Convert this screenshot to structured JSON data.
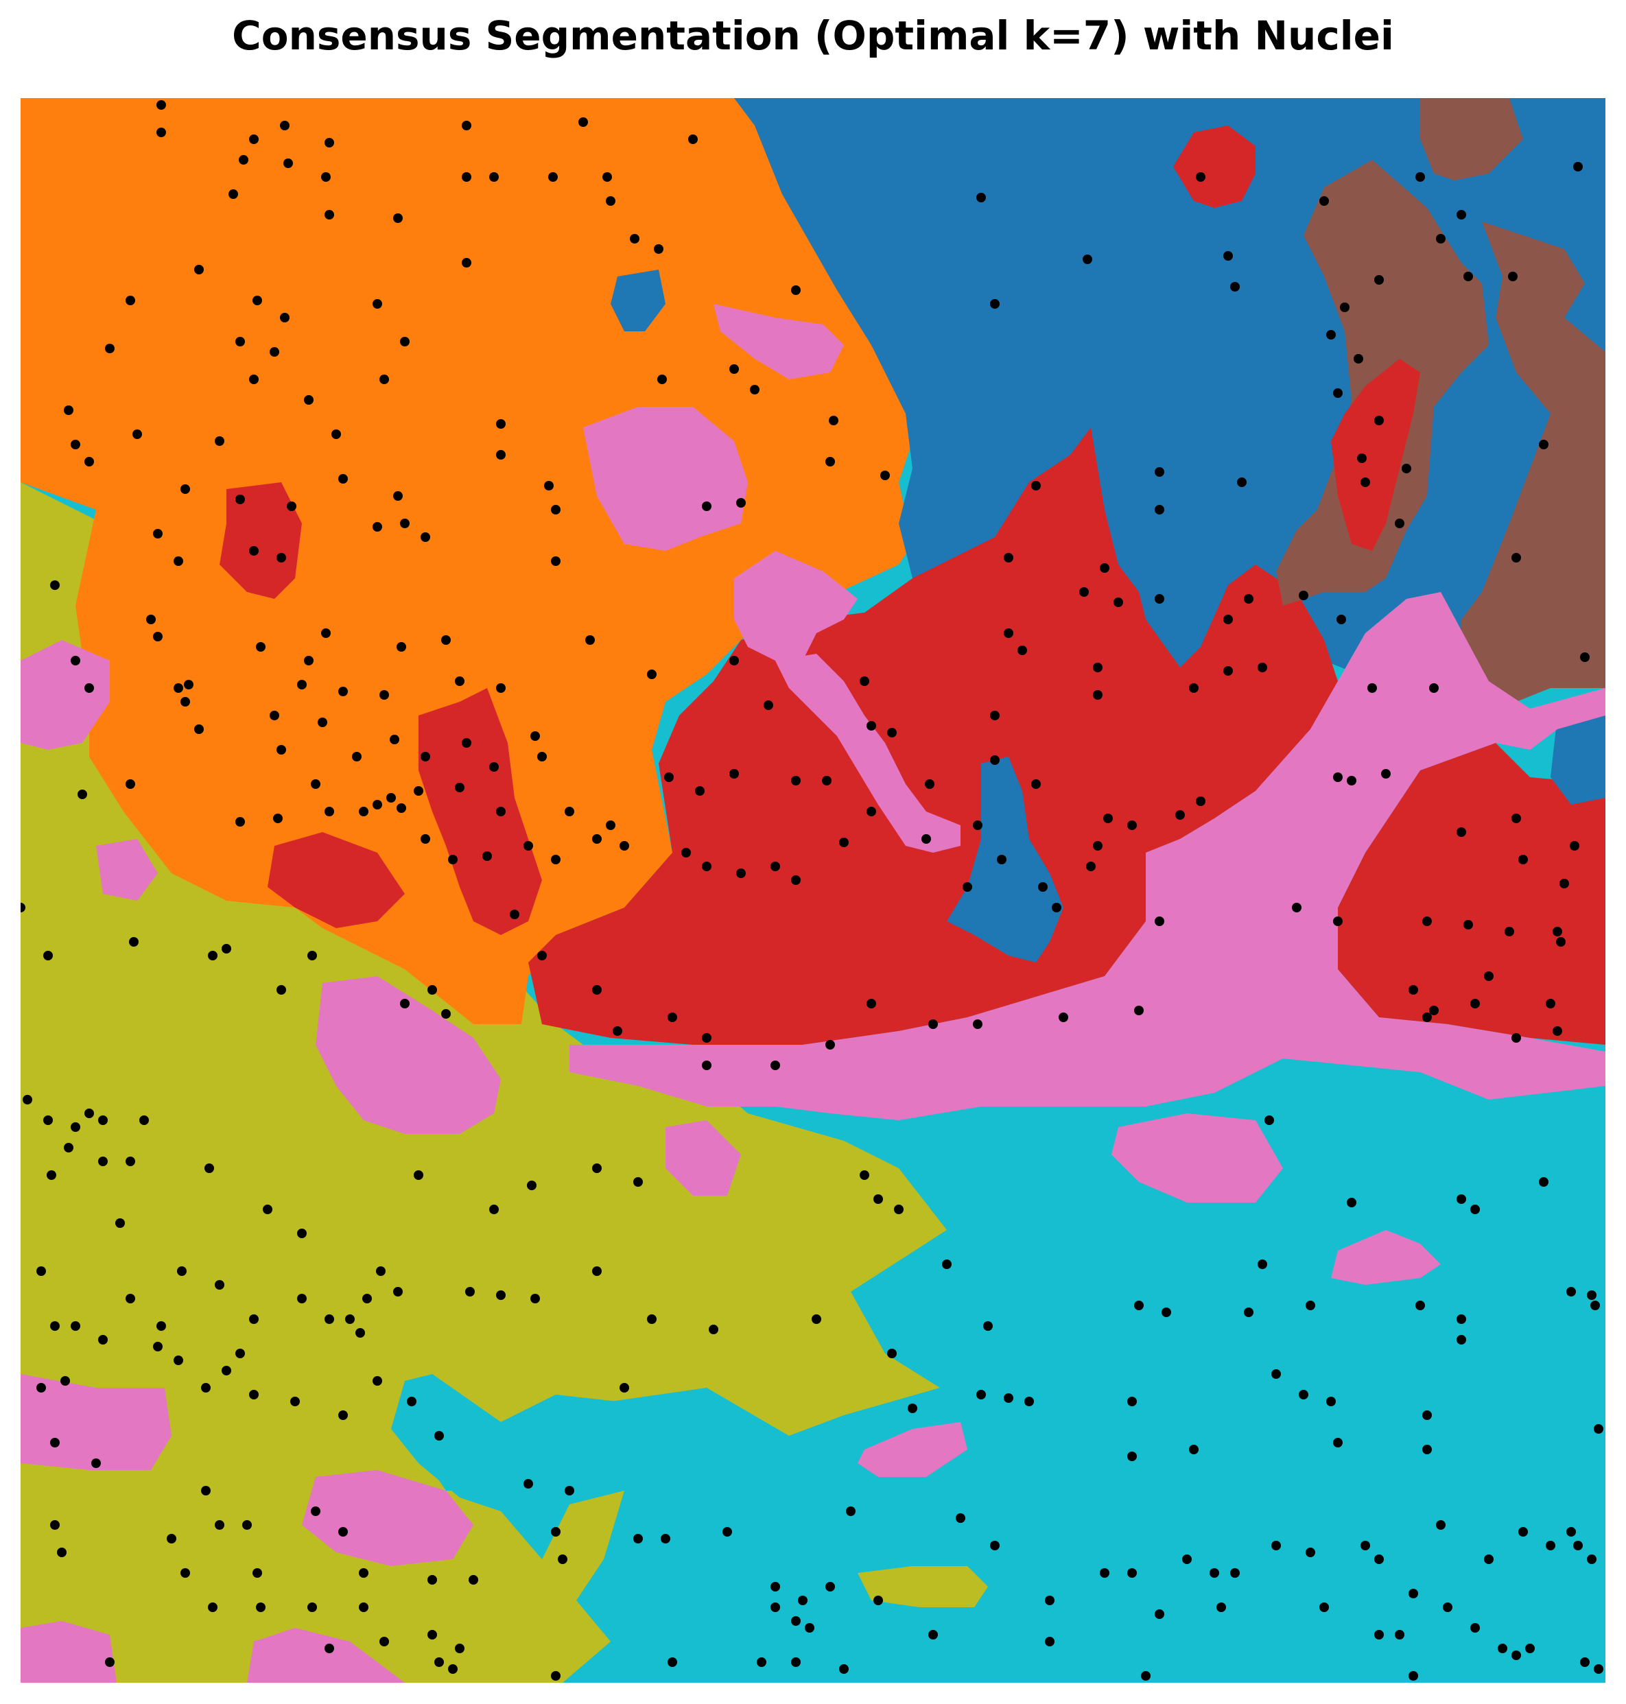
{
  "title": "Consensus Segmentation (Optimal k=7) with Nuclei",
  "segmentation": {
    "k": 7,
    "colors": {
      "orange": "#ff7f0e",
      "blue": "#1f77b4",
      "red": "#d62728",
      "brown": "#8c564b",
      "pink": "#e377c2",
      "olive": "#bcbd22",
      "cyan": "#17becf"
    },
    "nucleus_color": "#000000"
  }
}
